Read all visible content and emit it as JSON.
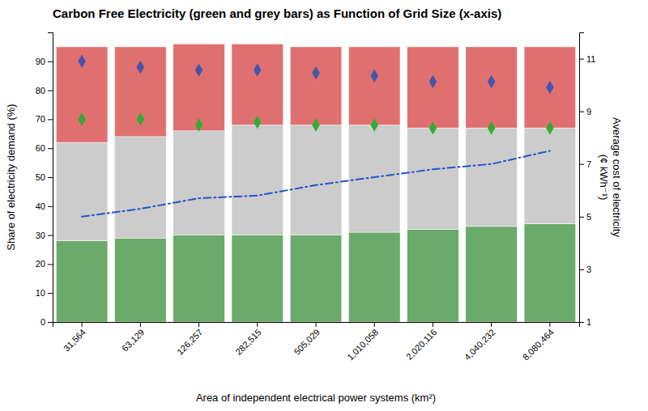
{
  "chart_data": {
    "type": "bar",
    "title": "Carbon Free Electricity (green and grey bars) as Function of Grid Size (x-axis)",
    "xlabel": "Area of independent electrical power systems (km²)",
    "ylabel": "Share of electricity demand (%)",
    "y2label": "Average cost of electricity\n(¢ kWh⁻¹)",
    "categories": [
      "31,564",
      "63,129",
      "126,257",
      "282,515",
      "505,029",
      "1,010,058",
      "2,020,116",
      "4,040,232",
      "8,080,464"
    ],
    "stacked": true,
    "grid": false,
    "series": [
      {
        "type": "bar",
        "color": "#6aaa6a",
        "values": [
          28,
          29,
          30,
          30,
          30,
          31,
          32,
          33,
          34
        ]
      },
      {
        "type": "bar",
        "color": "#cccccc",
        "values": [
          34,
          35,
          36,
          38,
          38,
          37,
          35,
          34,
          33
        ]
      },
      {
        "type": "bar",
        "color": "#e07070",
        "values": [
          33,
          31,
          30,
          28,
          27,
          27,
          28,
          28,
          28
        ]
      },
      {
        "type": "scatter",
        "marker": "diamond",
        "color": "#4455aa",
        "values": [
          90,
          88,
          87,
          87,
          86,
          85,
          83,
          83,
          81
        ]
      },
      {
        "type": "scatter",
        "marker": "diamond",
        "color": "#33aa33",
        "values": [
          70,
          70,
          68,
          69,
          68,
          68,
          67,
          67,
          67
        ]
      },
      {
        "type": "line",
        "axis": "y2",
        "line_style": "dashdot",
        "color": "#2255cc",
        "values": [
          5.0,
          5.3,
          5.7,
          5.8,
          6.2,
          6.5,
          6.8,
          7.0,
          7.5
        ]
      }
    ],
    "ylim": [
      0,
      100
    ],
    "yticks": [
      0,
      10,
      20,
      30,
      40,
      50,
      60,
      70,
      80,
      90
    ],
    "y2lim": [
      1,
      12
    ],
    "y2ticks": [
      1,
      3,
      5,
      7,
      9,
      11
    ]
  }
}
